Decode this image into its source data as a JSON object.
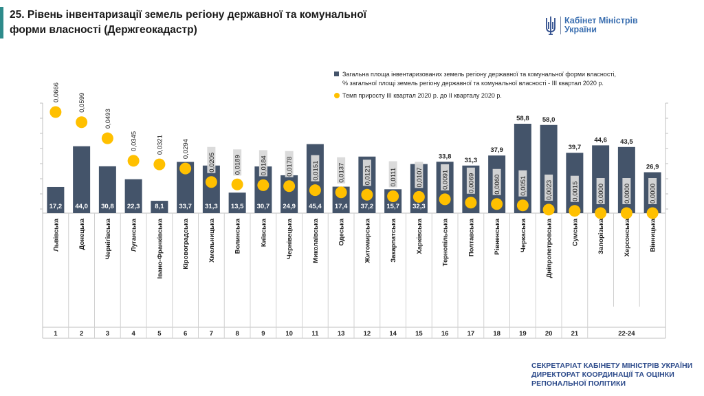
{
  "header": {
    "title_line1": "25. Рівень інвентаризації земель регіону державної та комунальної",
    "title_line2": "форми власності (Держгеокадастр)",
    "logo_line1": "Кабінет Міністрів",
    "logo_line2": "України"
  },
  "footer": {
    "line1": "СЕКРЕТАРІАТ КАБІНЕТУ МІНІСТРІВ УКРАЇНИ",
    "line2": "ДИРЕКТОРАТ КООРДИНАЦІЇ ТА ОЦІНКИ",
    "line3": "РЕПОНАЛЬНОЇ ПОЛІТИКИ"
  },
  "colors": {
    "bar": "#44546a",
    "dot": "#ffc000",
    "accent": "#2e8b8b",
    "footer": "#2c4a8a"
  },
  "chart_data": {
    "type": "bar",
    "categories": [
      "Львівська",
      "Донецька",
      "Чернігівська",
      "Луганська",
      "Івано-Франківська",
      "Кіровоградська",
      "Хмельницька",
      "Волинська",
      "Київська",
      "Чернівецька",
      "Миколаївська",
      "Одеська",
      "Житомирська",
      "Закарпатська",
      "Харківська",
      "Тернопільська",
      "Полтавська",
      "Рівненська",
      "Черкаська",
      "Дніпропетровська",
      "Сумська",
      "Запорізька",
      "Херсонська",
      "Вінницька"
    ],
    "ranks": [
      "1",
      "2",
      "3",
      "4",
      "5",
      "6",
      "7",
      "8",
      "9",
      "10",
      "11",
      "13",
      "12",
      "14",
      "15",
      "16",
      "17",
      "18",
      "19",
      "20",
      "21",
      "22-24"
    ],
    "series": [
      {
        "name": "Загальна площа інвентаризованих земель регіону державної та комунальної форми власності, % загальної площі земель регіону державної та комунальної власності - III квартал 2020 р.",
        "values": [
          17.2,
          44.0,
          30.8,
          22.3,
          8.1,
          33.7,
          31.3,
          13.5,
          30.7,
          24.9,
          45.4,
          17.4,
          37.2,
          15.7,
          32.3,
          33.8,
          31.3,
          37.9,
          58.8,
          58.0,
          39.7,
          44.6,
          43.5,
          26.9
        ],
        "labels": [
          "17,2",
          "44,0",
          "30,8",
          "22,3",
          "8,1",
          "33,7",
          "31,3",
          "13,5",
          "30,7",
          "24,9",
          "45,4",
          "17,4",
          "37,2",
          "15,7",
          "32,3",
          "33,8",
          "31,3",
          "37,9",
          "58,8",
          "58,0",
          "39,7",
          "44,6",
          "43,5",
          "26,9"
        ]
      },
      {
        "name": "Темп приросту III квартал 2020 р. до II кварталу 2020 р.",
        "values": [
          0.0666,
          0.0599,
          0.0493,
          0.0345,
          0.0321,
          0.0294,
          0.0205,
          0.0189,
          0.0184,
          0.0178,
          0.0151,
          0.0137,
          0.0121,
          0.0111,
          0.0107,
          0.0091,
          0.0069,
          0.006,
          0.0051,
          0.0023,
          0.0015,
          0.0,
          0.0,
          0.0
        ],
        "labels": [
          "0,0666",
          "0,0599",
          "0,0493",
          "0,0345",
          "0,0321",
          "0,0294",
          "0,0205",
          "0,0189",
          "0,0184",
          "0,0178",
          "0,0151",
          "0,0137",
          "0,0121",
          "0,0111",
          "0,0107",
          "0,0091",
          "0,0069",
          "0,0060",
          "0,0051",
          "0,0023",
          "0,0015",
          "0,0000",
          "0,0000",
          "0,0000"
        ]
      }
    ],
    "ylim": [
      0,
      60
    ],
    "legend_position": "top-right",
    "grid": false
  }
}
